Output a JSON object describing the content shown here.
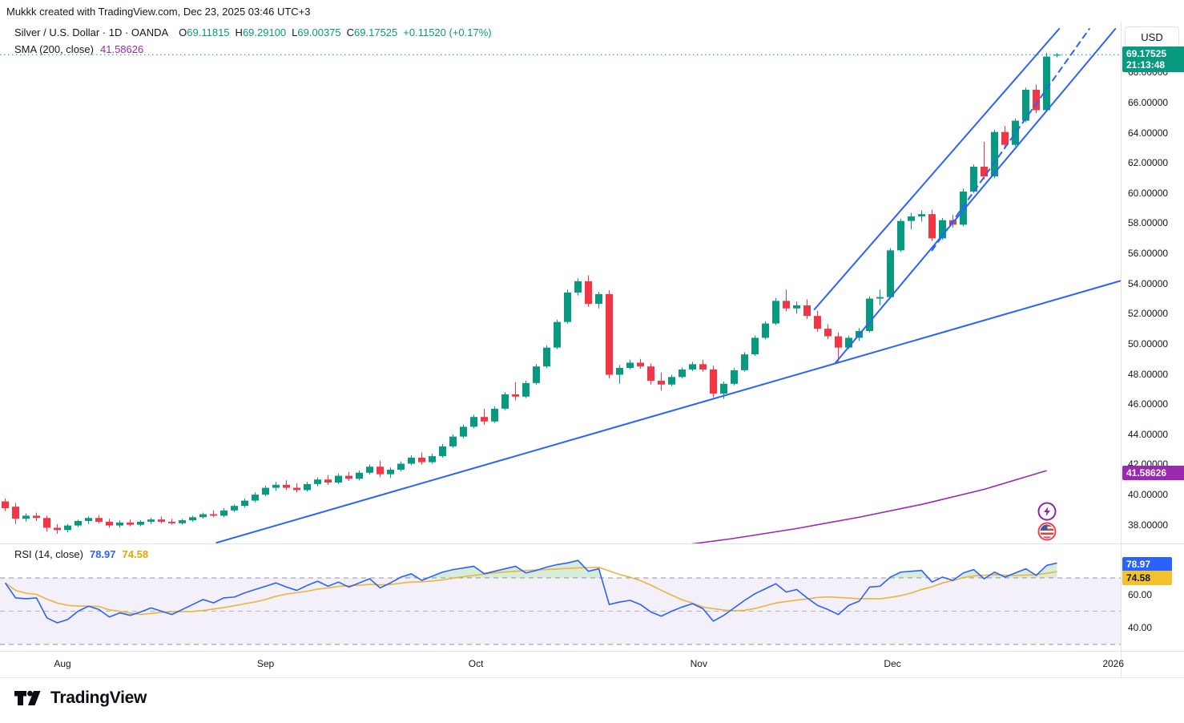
{
  "attribution": "Mukkk created with TradingView.com, Dec 23, 2025 03:46 UTC+3",
  "header": {
    "symbol": "Silver / U.S. Dollar",
    "interval": "1D",
    "exchange": "OANDA",
    "separator": "·",
    "ohlc": [
      {
        "k": "O",
        "v": "69.11815"
      },
      {
        "k": "H",
        "v": "69.29100"
      },
      {
        "k": "L",
        "v": "69.00375"
      },
      {
        "k": "C",
        "v": "69.17525"
      }
    ],
    "change": "+0.11520 (+0.17%)",
    "sma_label": "SMA (200, close)",
    "sma_value": "41.58626"
  },
  "price_axis": {
    "currency": "USD",
    "ticks": [
      "68.00000",
      "66.00000",
      "64.00000",
      "62.00000",
      "60.00000",
      "58.00000",
      "56.00000",
      "54.00000",
      "52.00000",
      "50.00000",
      "48.00000",
      "46.00000",
      "44.00000",
      "42.00000",
      "40.00000",
      "38.00000"
    ],
    "tick_values": [
      68,
      66,
      64,
      62,
      60,
      58,
      56,
      54,
      52,
      50,
      48,
      46,
      44,
      42,
      40,
      38
    ],
    "last_price_label": "69.17525",
    "countdown": "21:13:48",
    "sma_badge": "41.58626"
  },
  "rsi_pane": {
    "label": "RSI (14, close)",
    "value_main": "78.97",
    "value_ma": "74.58",
    "ticks": [
      "60.00",
      "40.00"
    ],
    "tick_values": [
      60,
      40
    ]
  },
  "time_axis": {
    "labels": [
      {
        "label": "Aug",
        "i": 5.5
      },
      {
        "label": "Sep",
        "i": 25
      },
      {
        "label": "Oct",
        "i": 45.2
      },
      {
        "label": "Nov",
        "i": 66.6
      },
      {
        "label": "Dec",
        "i": 85.2
      },
      {
        "label": "2026",
        "i": 106.4
      }
    ]
  },
  "event_markers": [
    {
      "name": "lightning-event-icon",
      "color": "#8e24aa"
    },
    {
      "name": "us-flag-event-icon",
      "color": "#ef4050"
    }
  ],
  "footer": {
    "brand": "TradingView"
  },
  "colors": {
    "up": "#089981",
    "down": "#f23645",
    "trendline": "#2962ff",
    "sma": "#9c27b0",
    "rsi_line": "#2962ff",
    "rsi_ma": "#edb33e",
    "rsi_band": "rgba(126,87,194,0.09)",
    "price_line": "#089981",
    "axis_border": "#e0e3eb",
    "overbought_fill": "rgba(76,175,80,0.22)"
  },
  "chart_data": {
    "type": "candlestick",
    "title": "Silver / U.S. Dollar 1D OANDA",
    "ylabel": "USD",
    "price_view_range": [
      36.3,
      70.2
    ],
    "rsi_levels": [
      70,
      50,
      30
    ],
    "current_price": 69.17525,
    "sma200_last": 41.58626,
    "candles": [
      [
        39.55,
        39.75,
        38.9,
        39.1
      ],
      [
        39.2,
        39.45,
        38.05,
        38.4
      ],
      [
        38.4,
        38.75,
        38.2,
        38.6
      ],
      [
        38.6,
        38.8,
        38.25,
        38.45
      ],
      [
        38.45,
        38.6,
        37.55,
        37.8
      ],
      [
        37.8,
        38.05,
        37.4,
        37.65
      ],
      [
        37.65,
        38.05,
        37.5,
        37.95
      ],
      [
        37.95,
        38.35,
        37.85,
        38.25
      ],
      [
        38.25,
        38.55,
        38.05,
        38.45
      ],
      [
        38.45,
        38.65,
        38.1,
        38.2
      ],
      [
        38.2,
        38.4,
        37.8,
        37.95
      ],
      [
        37.95,
        38.3,
        37.8,
        38.15
      ],
      [
        38.15,
        38.35,
        37.9,
        38.0
      ],
      [
        38.0,
        38.3,
        37.9,
        38.2
      ],
      [
        38.2,
        38.45,
        38.05,
        38.35
      ],
      [
        38.35,
        38.55,
        38.1,
        38.2
      ],
      [
        38.2,
        38.4,
        38.0,
        38.1
      ],
      [
        38.1,
        38.4,
        38.0,
        38.3
      ],
      [
        38.3,
        38.6,
        38.2,
        38.5
      ],
      [
        38.5,
        38.8,
        38.4,
        38.7
      ],
      [
        38.7,
        38.95,
        38.5,
        38.6
      ],
      [
        38.6,
        39.1,
        38.5,
        38.95
      ],
      [
        38.95,
        39.35,
        38.85,
        39.25
      ],
      [
        39.25,
        39.75,
        39.15,
        39.6
      ],
      [
        39.6,
        40.15,
        39.5,
        40.0
      ],
      [
        40.0,
        40.6,
        39.9,
        40.45
      ],
      [
        40.45,
        40.85,
        40.25,
        40.65
      ],
      [
        40.65,
        40.95,
        40.3,
        40.45
      ],
      [
        40.45,
        40.75,
        40.15,
        40.3
      ],
      [
        40.3,
        40.85,
        40.2,
        40.7
      ],
      [
        40.7,
        41.15,
        40.55,
        41.0
      ],
      [
        41.0,
        41.3,
        40.65,
        40.8
      ],
      [
        40.8,
        41.4,
        40.7,
        41.25
      ],
      [
        41.25,
        41.5,
        40.9,
        41.05
      ],
      [
        41.05,
        41.6,
        40.95,
        41.45
      ],
      [
        41.45,
        42.0,
        41.35,
        41.85
      ],
      [
        41.85,
        42.25,
        41.15,
        41.35
      ],
      [
        41.35,
        41.8,
        41.1,
        41.65
      ],
      [
        41.65,
        42.2,
        41.55,
        42.05
      ],
      [
        42.05,
        42.6,
        41.95,
        42.45
      ],
      [
        42.45,
        42.8,
        42.0,
        42.15
      ],
      [
        42.15,
        42.7,
        42.05,
        42.55
      ],
      [
        42.55,
        43.35,
        42.45,
        43.2
      ],
      [
        43.2,
        44.0,
        43.1,
        43.85
      ],
      [
        43.85,
        44.65,
        43.75,
        44.5
      ],
      [
        44.5,
        45.3,
        44.4,
        45.15
      ],
      [
        45.15,
        45.7,
        44.65,
        44.85
      ],
      [
        44.85,
        45.85,
        44.75,
        45.7
      ],
      [
        45.7,
        46.8,
        45.6,
        46.65
      ],
      [
        46.65,
        47.45,
        46.25,
        46.5
      ],
      [
        46.5,
        47.55,
        46.4,
        47.4
      ],
      [
        47.4,
        48.65,
        47.3,
        48.5
      ],
      [
        48.5,
        49.9,
        48.4,
        49.75
      ],
      [
        49.75,
        51.6,
        49.65,
        51.45
      ],
      [
        51.45,
        53.6,
        51.35,
        53.4
      ],
      [
        53.4,
        54.35,
        53.2,
        54.15
      ],
      [
        54.15,
        54.55,
        52.45,
        52.65
      ],
      [
        52.65,
        53.45,
        52.35,
        53.3
      ],
      [
        53.3,
        53.55,
        47.7,
        47.95
      ],
      [
        47.95,
        48.6,
        47.35,
        48.4
      ],
      [
        48.4,
        48.95,
        48.3,
        48.75
      ],
      [
        48.75,
        49.0,
        48.35,
        48.5
      ],
      [
        48.5,
        48.7,
        47.3,
        47.55
      ],
      [
        47.55,
        48.1,
        46.9,
        47.3
      ],
      [
        47.3,
        47.95,
        47.2,
        47.8
      ],
      [
        47.8,
        48.45,
        47.7,
        48.3
      ],
      [
        48.3,
        48.8,
        48.2,
        48.65
      ],
      [
        48.65,
        48.95,
        48.15,
        48.3
      ],
      [
        48.3,
        48.55,
        46.45,
        46.7
      ],
      [
        46.7,
        47.5,
        46.35,
        47.35
      ],
      [
        47.35,
        48.4,
        47.25,
        48.25
      ],
      [
        48.25,
        49.45,
        48.15,
        49.3
      ],
      [
        49.3,
        50.55,
        49.2,
        50.4
      ],
      [
        50.4,
        51.5,
        50.3,
        51.35
      ],
      [
        51.35,
        53.05,
        51.25,
        52.85
      ],
      [
        52.85,
        53.6,
        52.15,
        52.35
      ],
      [
        52.35,
        52.8,
        52.0,
        52.55
      ],
      [
        52.55,
        52.95,
        51.65,
        51.85
      ],
      [
        51.85,
        52.2,
        50.8,
        51.0
      ],
      [
        51.0,
        51.3,
        50.3,
        50.5
      ],
      [
        50.5,
        50.75,
        48.8,
        49.75
      ],
      [
        49.75,
        50.55,
        49.65,
        50.4
      ],
      [
        50.4,
        51.05,
        50.2,
        50.85
      ],
      [
        50.85,
        53.15,
        50.75,
        53.0
      ],
      [
        53.0,
        53.6,
        52.55,
        53.1
      ],
      [
        53.1,
        56.35,
        53.0,
        56.2
      ],
      [
        56.2,
        58.3,
        56.1,
        58.15
      ],
      [
        58.15,
        58.7,
        57.6,
        58.45
      ],
      [
        58.45,
        58.85,
        58.1,
        58.6
      ],
      [
        58.6,
        58.9,
        56.8,
        57.0
      ],
      [
        57.0,
        58.35,
        56.9,
        58.2
      ],
      [
        58.2,
        58.55,
        57.7,
        57.9
      ],
      [
        57.9,
        60.3,
        57.8,
        60.1
      ],
      [
        60.1,
        61.9,
        60.0,
        61.75
      ],
      [
        61.75,
        63.4,
        60.9,
        61.1
      ],
      [
        61.1,
        64.2,
        61.0,
        64.05
      ],
      [
        64.05,
        64.45,
        63.0,
        63.2
      ],
      [
        63.2,
        64.95,
        63.1,
        64.8
      ],
      [
        64.8,
        67.0,
        64.7,
        66.85
      ],
      [
        66.85,
        67.2,
        65.3,
        65.5
      ],
      [
        65.5,
        69.3,
        65.4,
        69.05
      ],
      [
        69.12,
        69.29,
        69.0,
        69.18
      ]
    ],
    "rsi_values": [
      67,
      58,
      57.5,
      58,
      46,
      43,
      45,
      50,
      53,
      51,
      46.5,
      49,
      47.5,
      49.5,
      52,
      50,
      48,
      51,
      54,
      57,
      55,
      58,
      58.5,
      61,
      63,
      65,
      67,
      64.5,
      62.5,
      65.5,
      68,
      65,
      67.5,
      64.5,
      67,
      69.5,
      64,
      67,
      70.5,
      72.5,
      68.5,
      71,
      73.5,
      75,
      76,
      77,
      72.5,
      74,
      75.5,
      77,
      73,
      74.5,
      76.5,
      78,
      79,
      80.5,
      74,
      75.5,
      54,
      55.5,
      56.5,
      54,
      49.5,
      47,
      50,
      52.5,
      54.5,
      51.5,
      44,
      47.5,
      52,
      56.5,
      60.5,
      63.5,
      66.5,
      61.5,
      63,
      58,
      53.5,
      51,
      48,
      53.5,
      56,
      64.5,
      65,
      70.5,
      73.5,
      74,
      74.5,
      67.5,
      70.5,
      68.5,
      73,
      75,
      69.5,
      73.5,
      70.5,
      73,
      75.5,
      71.5,
      77.5,
      78.97
    ],
    "sma200_points": [
      [
        64,
        36.55
      ],
      [
        70,
        37.1
      ],
      [
        76,
        37.75
      ],
      [
        82,
        38.5
      ],
      [
        88,
        39.35
      ],
      [
        94,
        40.35
      ],
      [
        100,
        41.59
      ]
    ],
    "trendlines": [
      {
        "name": "long-support-line",
        "style": "solid",
        "points": [
          [
            20.3,
            36.81
          ],
          [
            107.2,
            54.2
          ]
        ]
      },
      {
        "name": "channel-upper-line",
        "style": "solid",
        "points": [
          [
            77.7,
            52.28
          ],
          [
            101.2,
            70.89
          ]
        ]
      },
      {
        "name": "channel-lower-line",
        "style": "solid",
        "points": [
          [
            79.7,
            48.72
          ],
          [
            106.6,
            70.89
          ]
        ]
      },
      {
        "name": "channel-mid-dashed-line",
        "style": "dashed",
        "points": [
          [
            89,
            56.2
          ],
          [
            104.1,
            70.89
          ]
        ]
      }
    ]
  }
}
